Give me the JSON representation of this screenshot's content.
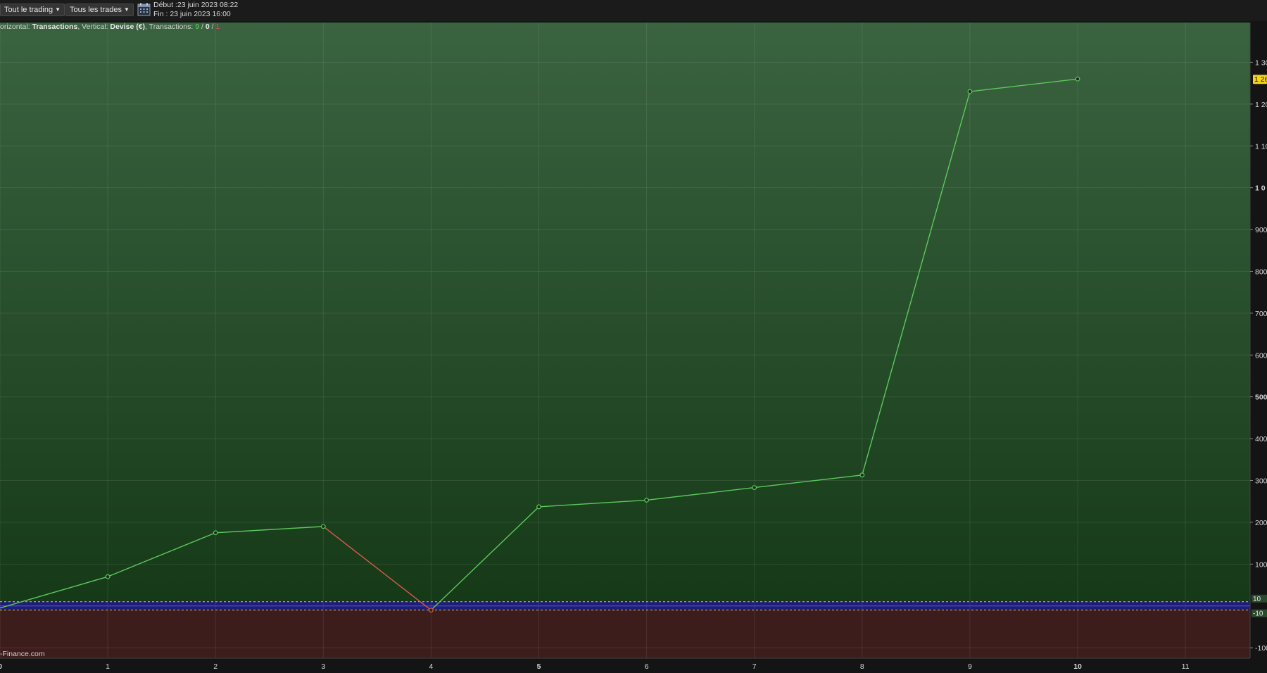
{
  "toolbar": {
    "range_label": "Tout le trading",
    "trades_label": "Tous les trades",
    "start_label": "Début :23 juin 2023 08:22",
    "end_label": "Fin :     23 juin 2023 16:00"
  },
  "info": {
    "horizontal_prefix": "orizontal: ",
    "horizontal_value": "Transactions",
    "vertical_prefix": ", Vertical: ",
    "vertical_value": "Devise (€)",
    "transactions_prefix": ", Transactions: ",
    "count_winning": "9",
    "count_neutral": "0",
    "count_losing": "1"
  },
  "watermark": "-Finance.com",
  "chart_data": {
    "type": "line",
    "x": [
      0,
      1,
      2,
      3,
      4,
      5,
      6,
      7,
      8,
      9,
      10
    ],
    "y": [
      -5,
      70,
      175,
      190,
      -10,
      237,
      253,
      283,
      313,
      1230,
      1260
    ],
    "xlim": [
      0,
      11.6
    ],
    "ylim": [
      -125,
      1395
    ],
    "x_ticks": [
      {
        "v": 0,
        "label": "0",
        "bold": true
      },
      {
        "v": 1,
        "label": "1",
        "bold": false
      },
      {
        "v": 2,
        "label": "2",
        "bold": false
      },
      {
        "v": 3,
        "label": "3",
        "bold": false
      },
      {
        "v": 4,
        "label": "4",
        "bold": false
      },
      {
        "v": 5,
        "label": "5",
        "bold": true
      },
      {
        "v": 6,
        "label": "6",
        "bold": false
      },
      {
        "v": 7,
        "label": "7",
        "bold": false
      },
      {
        "v": 8,
        "label": "8",
        "bold": false
      },
      {
        "v": 9,
        "label": "9",
        "bold": false
      },
      {
        "v": 10,
        "label": "10",
        "bold": true
      },
      {
        "v": 11,
        "label": "11",
        "bold": false
      }
    ],
    "y_ticks": [
      {
        "v": 1300,
        "label": "1 30",
        "bold": false
      },
      {
        "v": 1200,
        "label": "1 20",
        "bold": false
      },
      {
        "v": 1100,
        "label": "1 10",
        "bold": false
      },
      {
        "v": 1000,
        "label": "1 0",
        "bold": true
      },
      {
        "v": 900,
        "label": "900",
        "bold": false
      },
      {
        "v": 800,
        "label": "800",
        "bold": false
      },
      {
        "v": 700,
        "label": "700",
        "bold": false
      },
      {
        "v": 600,
        "label": "600",
        "bold": false
      },
      {
        "v": 500,
        "label": "500",
        "bold": true
      },
      {
        "v": 400,
        "label": "400",
        "bold": false
      },
      {
        "v": 300,
        "label": "300",
        "bold": false
      },
      {
        "v": 200,
        "label": "200",
        "bold": false
      },
      {
        "v": 100,
        "label": "100",
        "bold": false
      },
      {
        "v": -100,
        "label": "-100",
        "bold": false
      }
    ],
    "threshold_upper": {
      "value": 10,
      "label": "10"
    },
    "threshold_lower": {
      "value": -10,
      "label": "-10"
    },
    "last_value_label": "1 26",
    "colors": {
      "up_line": "#5cc85c",
      "down_line": "#d65a4a",
      "positive_zone_top": "#3a6340",
      "positive_zone_bottom": "#163a18",
      "negative_zone": "#3d1c1c",
      "threshold": "#d8c84a",
      "zero_band": "#1e1e7a",
      "last_value_badge": "#f2d21a"
    }
  }
}
